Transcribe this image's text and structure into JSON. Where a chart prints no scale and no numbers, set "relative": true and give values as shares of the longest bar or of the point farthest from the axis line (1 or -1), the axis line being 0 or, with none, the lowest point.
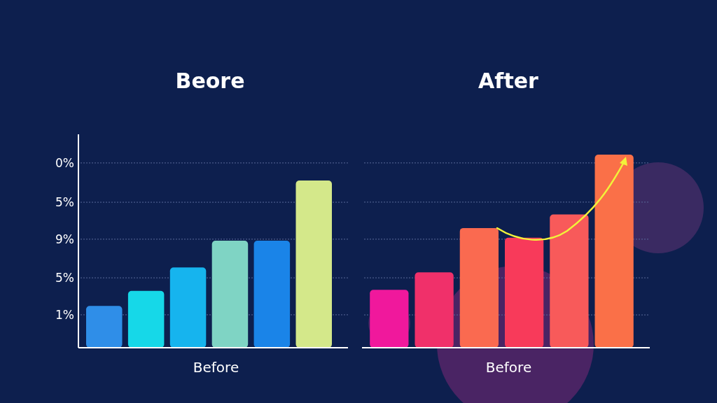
{
  "chart_data": [
    {
      "type": "bar",
      "title": "Beore",
      "xlabel": "Before",
      "categories": [
        null,
        null,
        null,
        null,
        null,
        null
      ],
      "values": [
        0.25,
        0.34,
        0.48,
        0.64,
        0.64,
        1
      ],
      "colors": [
        "#2f8ee8",
        "#16d8e8",
        "#16b4ee",
        "#7fd4c4",
        "#1a84e8",
        "#d4e88a"
      ],
      "relative": true,
      "annotations": [
        "0%",
        "5%",
        "9%",
        "5%",
        "1%"
      ],
      "ref_lines": [
        {
          "axis": "y",
          "value": 1.105,
          "color": "#5a6a9a",
          "line_style": "dotted"
        },
        {
          "axis": "y",
          "value": 0.87,
          "color": "#5a6a9a",
          "line_style": "dotted"
        },
        {
          "axis": "y",
          "value": 0.649,
          "color": "#5a6a9a",
          "line_style": "dotted"
        },
        {
          "axis": "y",
          "value": 0.418,
          "color": "#5a6a9a",
          "line_style": "dotted"
        },
        {
          "axis": "y",
          "value": 0.197,
          "color": "#5a6a9a",
          "line_style": "dotted"
        }
      ]
    },
    {
      "type": "bar",
      "title": "After",
      "xlabel": "Before",
      "categories": [
        null,
        null,
        null,
        null,
        null,
        null
      ],
      "values": [
        0.3,
        0.39,
        0.62,
        0.57,
        0.69,
        1
      ],
      "colors": [
        "#f0189c",
        "#f0306a",
        "#fa6a50",
        "#f83a5a",
        "#f85a5a",
        "#fa7048"
      ],
      "relative": true,
      "ref_lines": [
        {
          "axis": "y",
          "value": 0.957,
          "color": "#5a6a9a",
          "line_style": "dotted"
        },
        {
          "axis": "y",
          "value": 0.754,
          "color": "#5a6a9a",
          "line_style": "dotted"
        },
        {
          "axis": "y",
          "value": 0.562,
          "color": "#5a6a9a",
          "line_style": "dotted"
        },
        {
          "axis": "y",
          "value": 0.362,
          "color": "#5a6a9a",
          "line_style": "dotted"
        },
        {
          "axis": "y",
          "value": 0.17,
          "color": "#5a6a9a",
          "line_style": "dotted"
        }
      ]
    }
  ]
}
